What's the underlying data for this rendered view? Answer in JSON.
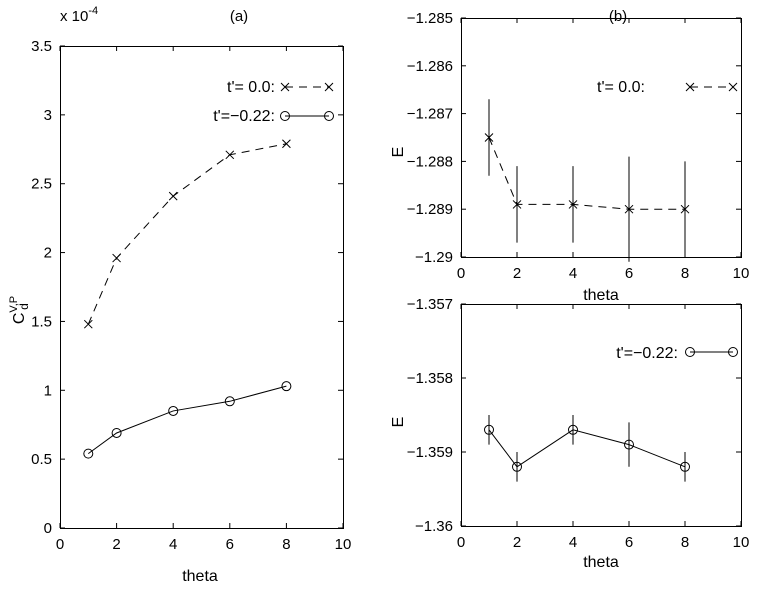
{
  "chart_data": [
    {
      "id": "a",
      "type": "line",
      "title": "(a)",
      "xlabel": "theta",
      "ylabel": "C",
      "ylabel_sup": "V,P",
      "ylabel_sub": "d",
      "exponent_label": "x 10",
      "exponent_power": "-4",
      "xlim": [
        0,
        10
      ],
      "ylim": [
        0,
        3.5
      ],
      "xticks": [
        0,
        2,
        4,
        6,
        8,
        10
      ],
      "yticks": [
        0,
        0.5,
        1,
        1.5,
        2,
        2.5,
        3,
        3.5
      ],
      "xtick_labels": [
        "0",
        "2",
        "4",
        "6",
        "8",
        "10"
      ],
      "ytick_labels": [
        "0",
        "0.5",
        "1",
        "1.5",
        "2",
        "2.5",
        "3",
        "3.5"
      ],
      "legend_position": "top-right",
      "series": [
        {
          "name": "t'= 0.0:",
          "style": "dashed",
          "marker": "x",
          "x": [
            1,
            2,
            4,
            6,
            8
          ],
          "y": [
            1.48,
            1.96,
            2.41,
            2.71,
            2.79
          ]
        },
        {
          "name": "t'=−0.22:",
          "style": "solid",
          "marker": "o",
          "x": [
            1,
            2,
            4,
            6,
            8
          ],
          "y": [
            0.54,
            0.69,
            0.85,
            0.92,
            1.03
          ]
        }
      ]
    },
    {
      "id": "b-top",
      "type": "line",
      "title": "(b)",
      "xlabel": "theta",
      "ylabel": "E",
      "xlim": [
        0,
        10
      ],
      "ylim": [
        -1.29,
        -1.285
      ],
      "xticks": [
        0,
        2,
        4,
        6,
        8,
        10
      ],
      "yticks": [
        -1.29,
        -1.289,
        -1.288,
        -1.287,
        -1.286,
        -1.285
      ],
      "xtick_labels": [
        "0",
        "2",
        "4",
        "6",
        "8",
        "10"
      ],
      "ytick_labels": [
        "−1.29",
        "−1.289",
        "−1.288",
        "−1.287",
        "−1.286",
        "−1.285"
      ],
      "legend_position": "top-right",
      "series": [
        {
          "name": "t'= 0.0:",
          "style": "dashed",
          "marker": "x",
          "x": [
            1,
            2,
            4,
            6,
            8
          ],
          "y": [
            -1.2875,
            -1.2889,
            -1.2889,
            -1.289,
            -1.289
          ],
          "err": [
            0.0008,
            0.0008,
            0.0008,
            0.0011,
            0.001
          ]
        }
      ]
    },
    {
      "id": "b-bottom",
      "type": "line",
      "title": "",
      "xlabel": "theta",
      "ylabel": "E",
      "xlim": [
        0,
        10
      ],
      "ylim": [
        -1.36,
        -1.357
      ],
      "xticks": [
        0,
        2,
        4,
        6,
        8,
        10
      ],
      "yticks": [
        -1.36,
        -1.359,
        -1.358,
        -1.357
      ],
      "xtick_labels": [
        "0",
        "2",
        "4",
        "6",
        "8",
        "10"
      ],
      "ytick_labels": [
        "−1.36",
        "−1.359",
        "−1.358",
        "−1.357"
      ],
      "legend_position": "top-right",
      "series": [
        {
          "name": "t'=−0.22:",
          "style": "solid",
          "marker": "o",
          "x": [
            1,
            2,
            4,
            6,
            8
          ],
          "y": [
            -1.3587,
            -1.3592,
            -1.3587,
            -1.3589,
            -1.3592
          ],
          "err": [
            0.0002,
            0.0002,
            0.0002,
            0.0003,
            0.0002
          ]
        }
      ]
    }
  ]
}
